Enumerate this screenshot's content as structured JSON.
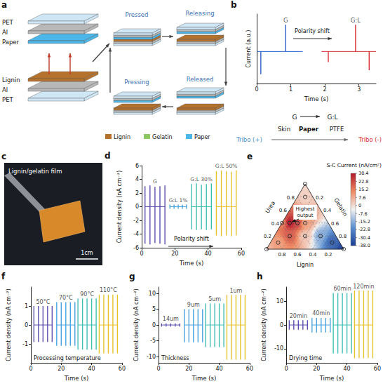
{
  "figure": {
    "panel_letters": [
      "a",
      "b",
      "c",
      "d",
      "e",
      "f",
      "g",
      "h"
    ],
    "a": {
      "layers": [
        "PET",
        "Al",
        "Paper",
        "Lignin",
        "Al",
        "PET"
      ],
      "states": [
        "Pressed",
        "Releasing",
        "Released",
        "Pressing"
      ],
      "legend": [
        {
          "name": "Lignin",
          "color": "#b5722d"
        },
        {
          "name": "Gelatin",
          "color": "#8cc965"
        },
        {
          "name": "Paper",
          "color": "#4db6e8"
        }
      ]
    },
    "b_tribo": {
      "left": "Tribo (+)",
      "right": "Tribo (-)",
      "materials": [
        "Skin",
        "Paper",
        "PTFE"
      ],
      "shift": [
        "G",
        "G:L"
      ]
    },
    "c": {
      "caption": "Lignin/gelatin film",
      "scale_bar": "1cm"
    }
  },
  "chart_data": [
    {
      "type": "line",
      "x_label": "Time (s)",
      "y_label": "Current (a.u.)",
      "xlim": [
        0,
        3.5
      ],
      "xticks": [
        0,
        1,
        2,
        3
      ],
      "ylim": [
        -1.2,
        1.4
      ],
      "yticks": [],
      "tick_labels": "x",
      "grid": false,
      "baseline": 0,
      "annotations": [
        "Polarity shift"
      ],
      "series": [
        {
          "name": "G",
          "color": "#2f5fc9",
          "x": [
            0,
            0.12,
            0.85,
            1.35
          ],
          "values": [
            0,
            -0.85,
            1,
            0
          ]
        },
        {
          "name": "G:L",
          "color": "#d9323a",
          "x": [
            1.9,
            2.1,
            2.9,
            3.3,
            3.5
          ],
          "values": [
            0,
            -0.4,
            1,
            -0.7,
            0
          ]
        }
      ]
    },
    {
      "type": "line",
      "x_label": "Time (s)",
      "y_label": "Current density (nA cm⁻²)",
      "xlim": [
        0,
        60
      ],
      "xticks": [
        0,
        20,
        40,
        60
      ],
      "ylim": [
        -6,
        6
      ],
      "yticks": [
        -6,
        -4,
        -2,
        0,
        2,
        4,
        6
      ],
      "grid": false,
      "baseline": 0,
      "annotations": [
        "Polarity shift"
      ],
      "series": [
        {
          "name": "G",
          "color": "#5a4fb0",
          "x": [
            2,
            5,
            8,
            11,
            14
          ],
          "values": [
            3,
            3.1,
            2.9,
            3,
            3.1
          ],
          "low": [
            -5.4,
            -5.5,
            -5.3,
            -5.4,
            -5.5
          ]
        },
        {
          "name": "G:L 1%",
          "color": "#4aa3df",
          "x": [
            17,
            19.5,
            22,
            24.5,
            27
          ],
          "values": [
            0.3,
            0.3,
            0.3,
            0.3,
            0.3
          ],
          "low": [
            -0.3,
            -0.3,
            -0.3,
            -0.3,
            -0.3
          ]
        },
        {
          "name": "G:L 30%",
          "color": "#3fbfb5",
          "x": [
            30,
            33,
            36,
            39,
            42
          ],
          "values": [
            3.3,
            3.4,
            3.2,
            3.3,
            3.4
          ],
          "low": [
            -3.3,
            -3.4,
            -3.3,
            -3.4,
            -3.3
          ]
        },
        {
          "name": "G:L 50%",
          "color": "#e6c229",
          "x": [
            45,
            48,
            51,
            54,
            57
          ],
          "values": [
            5.2,
            5.3,
            5.2,
            5.1,
            5.3
          ],
          "low": [
            -4.2,
            -4.3,
            -4.2,
            -4.3,
            -4.2
          ]
        }
      ]
    },
    {
      "type": "ternary",
      "axis_names": [
        "Lignin",
        "Gelatin",
        "Urea"
      ],
      "ticks": [
        0.2,
        0.4,
        0.6,
        0.8
      ],
      "fractions": [
        [
          1,
          0,
          0
        ],
        [
          0,
          1,
          0
        ],
        [
          0,
          0,
          1
        ],
        [
          0.5,
          0.1,
          0.4
        ],
        [
          0.6,
          0.2,
          0.2
        ],
        [
          0.4,
          0.2,
          0.4
        ],
        [
          0.3,
          0.3,
          0.4
        ],
        [
          0.1,
          0.1,
          0.8
        ],
        [
          0.4,
          0.4,
          0.2
        ],
        [
          0.2,
          0.6,
          0.2
        ],
        [
          0.1,
          0.8,
          0.1
        ],
        [
          0.6,
          0,
          0.4
        ],
        [
          0.8,
          0.1,
          0.1
        ]
      ],
      "values": [
        6,
        -38,
        1,
        30.4,
        20,
        24,
        9,
        2,
        3,
        -16,
        -30,
        14,
        10
      ],
      "colorbar": {
        "title": "S-C Current (nA/cm²)",
        "range": [
          -38,
          30.4
        ],
        "ticks": [
          30.4,
          22.8,
          15.2,
          7.6,
          0,
          -7.6,
          -15.2,
          -22.8,
          -30.4,
          {
            "value": -38,
            "label": "-38.0"
          }
        ]
      },
      "annotations": [
        "Highest output"
      ]
    },
    {
      "type": "line",
      "x_label": "Time (s)",
      "y_label": "Current density (nA cm⁻²)",
      "xlim": [
        0,
        60
      ],
      "xticks": [
        0,
        20,
        40,
        60
      ],
      "ylim": [
        -2,
        2
      ],
      "yticks": [
        -1,
        0,
        1
      ],
      "grid": false,
      "baseline": 0,
      "annotations": [
        "Processing temperature"
      ],
      "series": [
        {
          "name": "50°C",
          "color": "#5a4fb0",
          "x": [
            2,
            5,
            8,
            11,
            14
          ],
          "values": [
            1,
            1,
            1,
            1,
            1
          ],
          "low": [
            -0.9,
            -0.9,
            -0.9,
            -0.9,
            -0.9
          ]
        },
        {
          "name": "70°C",
          "color": "#4aa3df",
          "x": [
            17,
            20,
            23,
            26,
            29
          ],
          "values": [
            1.2,
            1.2,
            1.2,
            1.2,
            1.2
          ],
          "low": [
            -1.1,
            -1.1,
            -1.1,
            -1.1,
            -1.1
          ]
        },
        {
          "name": "90°C",
          "color": "#3fbfb5",
          "x": [
            31,
            34,
            37,
            40,
            43
          ],
          "values": [
            1.4,
            1.4,
            1.4,
            1.4,
            1.4
          ],
          "low": [
            -1.3,
            -1.3,
            -1.3,
            -1.3,
            -1.3
          ]
        },
        {
          "name": "110°C",
          "color": "#e6c229",
          "x": [
            45,
            48,
            51,
            54,
            57
          ],
          "values": [
            1.6,
            1.6,
            1.6,
            1.6,
            1.6
          ],
          "low": [
            -1.5,
            -1.5,
            -1.5,
            -1.5,
            -1.5
          ]
        }
      ]
    },
    {
      "type": "line",
      "x_label": "Time (s)",
      "y_label": "Current density (nA cm⁻²)",
      "xlim": [
        0,
        60
      ],
      "xticks": [
        0,
        20,
        40,
        60
      ],
      "ylim": [
        -12,
        12
      ],
      "yticks": [
        -10,
        -5,
        0,
        5,
        10
      ],
      "grid": false,
      "baseline": 0,
      "annotations": [
        "Thickness"
      ],
      "series": [
        {
          "name": "14um",
          "color": "#5a4fb0",
          "x": [
            2,
            5,
            8,
            11,
            14
          ],
          "values": [
            0.5,
            0.5,
            0.5,
            0.5,
            0.5
          ],
          "low": [
            -0.5,
            -0.5,
            -0.5,
            -0.5,
            -0.5
          ]
        },
        {
          "name": "9um",
          "color": "#4aa3df",
          "x": [
            17,
            20,
            23,
            26,
            29
          ],
          "values": [
            5,
            5,
            5,
            5,
            5
          ],
          "low": [
            -5.5,
            -5.5,
            -5.5,
            -5.5,
            -5.5
          ]
        },
        {
          "name": "5um",
          "color": "#3fbfb5",
          "x": [
            31,
            34,
            37,
            40,
            43
          ],
          "values": [
            6.8,
            6.8,
            6.8,
            6.8,
            6.8
          ],
          "low": [
            -7,
            -7,
            -7,
            -7,
            -7
          ]
        },
        {
          "name": "1um",
          "color": "#e6c229",
          "x": [
            45,
            48,
            51,
            54,
            57
          ],
          "values": [
            9.5,
            9.5,
            9.5,
            9.5,
            9.5
          ],
          "low": [
            -11,
            -11,
            -11,
            -11,
            -11
          ]
        }
      ]
    },
    {
      "type": "line",
      "x_label": "Time (s)",
      "y_label": "Current density (nA cm⁻²)",
      "xlim": [
        0,
        60
      ],
      "xticks": [
        0,
        20,
        40,
        60
      ],
      "ylim": [
        -16,
        16
      ],
      "yticks": [
        -10,
        0,
        10
      ],
      "grid": false,
      "baseline": 0,
      "annotations": [
        "Drying time"
      ],
      "series": [
        {
          "name": "20min",
          "color": "#5a4fb0",
          "x": [
            2,
            5,
            8,
            11,
            14
          ],
          "values": [
            2,
            2,
            2,
            2,
            2
          ],
          "low": [
            -2,
            -2,
            -2,
            -2,
            -2
          ]
        },
        {
          "name": "40min",
          "color": "#4aa3df",
          "x": [
            17,
            20,
            23,
            26,
            29
          ],
          "values": [
            3,
            3,
            3,
            3,
            3
          ],
          "low": [
            -3.2,
            -3.2,
            -3.2,
            -3.2,
            -3.2
          ]
        },
        {
          "name": "60min",
          "color": "#3fbfb5",
          "x": [
            31,
            34,
            37,
            40,
            43
          ],
          "values": [
            13.5,
            13.5,
            13.5,
            13.5,
            13.5
          ],
          "low": [
            -12,
            -12,
            -12,
            -12,
            -12
          ]
        },
        {
          "name": "120min",
          "color": "#e6c229",
          "x": [
            45,
            48,
            51,
            54,
            57
          ],
          "values": [
            14.5,
            14.5,
            14.5,
            14.5,
            14.5
          ],
          "low": [
            -14,
            -14,
            -14,
            -14,
            -14
          ]
        }
      ]
    }
  ]
}
